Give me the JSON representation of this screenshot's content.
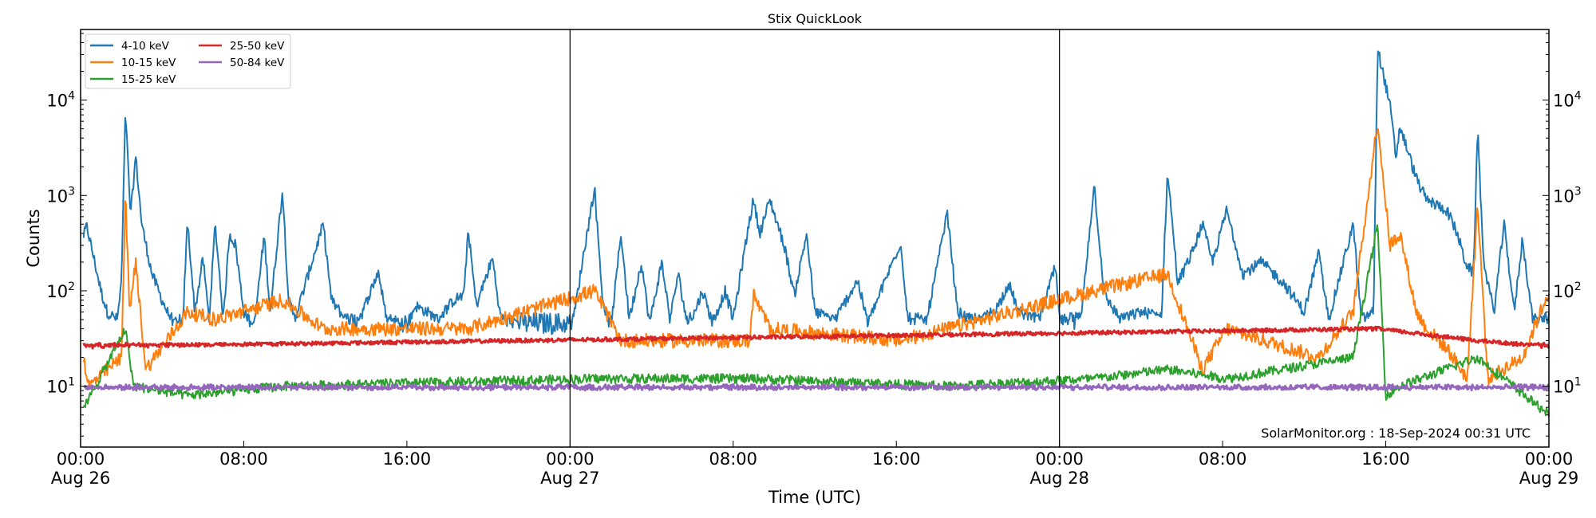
{
  "chart_data": {
    "type": "line",
    "title": "Stix QuickLook",
    "xlabel": "Time (UTC)",
    "ylabel": "Counts",
    "yscale": "log",
    "ylim": [
      2.3,
      55000
    ],
    "xlim_hours": [
      0,
      72
    ],
    "x_ticks": [
      {
        "hour": 0,
        "time": "00:00",
        "date": "Aug 26"
      },
      {
        "hour": 8,
        "time": "08:00",
        "date": ""
      },
      {
        "hour": 16,
        "time": "16:00",
        "date": ""
      },
      {
        "hour": 24,
        "time": "00:00",
        "date": "Aug 27"
      },
      {
        "hour": 32,
        "time": "08:00",
        "date": ""
      },
      {
        "hour": 40,
        "time": "16:00",
        "date": ""
      },
      {
        "hour": 48,
        "time": "00:00",
        "date": "Aug 28"
      },
      {
        "hour": 56,
        "time": "08:00",
        "date": ""
      },
      {
        "hour": 64,
        "time": "16:00",
        "date": ""
      },
      {
        "hour": 72,
        "time": "00:00",
        "date": "Aug 29"
      }
    ],
    "y_ticks": [
      {
        "value": 10,
        "base": "10",
        "exp": "1"
      },
      {
        "value": 100,
        "base": "10",
        "exp": "2"
      },
      {
        "value": 1000,
        "base": "10",
        "exp": "3"
      },
      {
        "value": 10000,
        "base": "10",
        "exp": "4"
      }
    ],
    "day_boundaries_hours": [
      24,
      48
    ],
    "legend_position": "top-left",
    "annotation": "SolarMonitor.org : 18-Sep-2024 00:31 UTC",
    "series": [
      {
        "name": "4-10 keV",
        "color": "#1f77b4",
        "baseline": 45,
        "noise": 0.12,
        "points": [
          [
            0,
            300
          ],
          [
            0.3,
            480
          ],
          [
            1,
            100
          ],
          [
            1.3,
            60
          ],
          [
            1.8,
            50
          ],
          [
            2.0,
            120
          ],
          [
            2.2,
            7800
          ],
          [
            2.45,
            600
          ],
          [
            2.7,
            2600
          ],
          [
            3,
            500
          ],
          [
            3.5,
            150
          ],
          [
            4,
            80
          ],
          [
            4.5,
            45
          ],
          [
            5,
            40
          ],
          [
            5.24,
            550
          ],
          [
            5.6,
            60
          ],
          [
            6.0,
            220
          ],
          [
            6.3,
            50
          ],
          [
            6.6,
            500
          ],
          [
            7,
            50
          ],
          [
            7.3,
            400
          ],
          [
            7.6,
            300
          ],
          [
            8,
            60
          ],
          [
            8.5,
            40
          ],
          [
            9.0,
            380
          ],
          [
            9.3,
            60
          ],
          [
            9.9,
            1150
          ],
          [
            10.2,
            80
          ],
          [
            10.5,
            50
          ],
          [
            11.9,
            500
          ],
          [
            12.3,
            80
          ],
          [
            13,
            50
          ],
          [
            13.5,
            40
          ],
          [
            14.6,
            160
          ],
          [
            15,
            50
          ],
          [
            16,
            40
          ],
          [
            16.4,
            70
          ],
          [
            17,
            60
          ],
          [
            17.5,
            50
          ],
          [
            18.3,
            80
          ],
          [
            18.8,
            90
          ],
          [
            19.0,
            450
          ],
          [
            19.4,
            70
          ],
          [
            20.2,
            220
          ],
          [
            20.6,
            50
          ],
          [
            22,
            40
          ],
          [
            23.9,
            35
          ],
          [
            24.1,
            40
          ],
          [
            24.6,
            200
          ],
          [
            25.2,
            1200
          ],
          [
            25.6,
            80
          ],
          [
            26,
            40
          ],
          [
            26.5,
            400
          ],
          [
            26.9,
            50
          ],
          [
            27.5,
            200
          ],
          [
            27.9,
            45
          ],
          [
            28.5,
            200
          ],
          [
            28.9,
            50
          ],
          [
            29.3,
            150
          ],
          [
            29.8,
            40
          ],
          [
            30.5,
            100
          ],
          [
            31,
            45
          ],
          [
            31.6,
            100
          ],
          [
            32,
            50
          ],
          [
            32.8,
            550
          ],
          [
            33,
            900
          ],
          [
            33.3,
            400
          ],
          [
            33.8,
            900
          ],
          [
            34.5,
            300
          ],
          [
            35,
            90
          ],
          [
            35.6,
            400
          ],
          [
            36,
            60
          ],
          [
            37,
            50
          ],
          [
            38.1,
            130
          ],
          [
            38.6,
            45
          ],
          [
            40.2,
            320
          ],
          [
            40.6,
            45
          ],
          [
            41.5,
            50
          ],
          [
            42.5,
            650
          ],
          [
            43,
            60
          ],
          [
            44,
            45
          ],
          [
            45,
            70
          ],
          [
            45.5,
            120
          ],
          [
            46,
            60
          ],
          [
            47,
            50
          ],
          [
            47.8,
            180
          ],
          [
            48,
            50
          ],
          [
            49,
            40
          ],
          [
            49.7,
            1300
          ],
          [
            50.2,
            90
          ],
          [
            51,
            50
          ],
          [
            52,
            60
          ],
          [
            53,
            55
          ],
          [
            53.3,
            1800
          ],
          [
            53.8,
            120
          ],
          [
            54.5,
            250
          ],
          [
            55,
            500
          ],
          [
            55.5,
            200
          ],
          [
            56.2,
            700
          ],
          [
            57,
            150
          ],
          [
            57.9,
            200
          ],
          [
            59,
            120
          ],
          [
            60,
            60
          ],
          [
            60.7,
            250
          ],
          [
            61.2,
            50
          ],
          [
            62.4,
            500
          ],
          [
            62.8,
            50
          ],
          [
            63.4,
            60
          ],
          [
            63.6,
            35000
          ],
          [
            64.2,
            9000
          ],
          [
            64.5,
            2500
          ],
          [
            64.7,
            5300
          ],
          [
            65.5,
            1500
          ],
          [
            66,
            900
          ],
          [
            67,
            700
          ],
          [
            67.5,
            400
          ],
          [
            67.9,
            200
          ],
          [
            68.3,
            150
          ],
          [
            68.5,
            5000
          ],
          [
            68.8,
            200
          ],
          [
            69.3,
            60
          ],
          [
            69.8,
            500
          ],
          [
            70.3,
            60
          ],
          [
            70.7,
            350
          ],
          [
            71.2,
            50
          ],
          [
            72,
            50
          ]
        ]
      },
      {
        "name": "10-15 keV",
        "color": "#ff7f0e",
        "baseline": 7.5,
        "noise": 0.15,
        "points": [
          [
            0,
            30
          ],
          [
            0.4,
            10
          ],
          [
            2.0,
            20
          ],
          [
            2.2,
            1000
          ],
          [
            2.4,
            60
          ],
          [
            2.7,
            200
          ],
          [
            3.2,
            15
          ],
          [
            5.24,
            60
          ],
          [
            6.6,
            50
          ],
          [
            9.9,
            80
          ],
          [
            11.9,
            40
          ],
          [
            19.0,
            40
          ],
          [
            25.2,
            100
          ],
          [
            26.5,
            30
          ],
          [
            32.8,
            30
          ],
          [
            33.0,
            90
          ],
          [
            33.8,
            40
          ],
          [
            40.2,
            30
          ],
          [
            42.5,
            40
          ],
          [
            49.7,
            100
          ],
          [
            53.3,
            150
          ],
          [
            55,
            15
          ],
          [
            56.2,
            40
          ],
          [
            60.7,
            20
          ],
          [
            62.4,
            60
          ],
          [
            63.6,
            6000
          ],
          [
            64.2,
            300
          ],
          [
            64.7,
            400
          ],
          [
            65.5,
            60
          ],
          [
            66,
            40
          ],
          [
            67,
            25
          ],
          [
            68,
            12
          ],
          [
            68.5,
            800
          ],
          [
            69,
            12
          ],
          [
            70.7,
            20
          ],
          [
            72,
            100
          ]
        ]
      },
      {
        "name": "15-25 keV",
        "color": "#2ca02c",
        "baseline": 5,
        "noise": 0.1,
        "points": [
          [
            0,
            5
          ],
          [
            2.2,
            40
          ],
          [
            2.6,
            10
          ],
          [
            5.24,
            8
          ],
          [
            9.9,
            10
          ],
          [
            25.2,
            12
          ],
          [
            33.0,
            12
          ],
          [
            42.5,
            10
          ],
          [
            49.7,
            12
          ],
          [
            53.3,
            15
          ],
          [
            56.2,
            12
          ],
          [
            62.4,
            20
          ],
          [
            63.6,
            500
          ],
          [
            64.0,
            8
          ],
          [
            64.7,
            10
          ],
          [
            68.5,
            20
          ],
          [
            72,
            5
          ]
        ]
      },
      {
        "name": "25-50 keV",
        "color": "#d62728",
        "baseline": 26,
        "noise": 0.04,
        "points": [
          [
            0,
            26
          ],
          [
            63.6,
            40
          ],
          [
            68.5,
            30
          ],
          [
            72,
            26
          ]
        ]
      },
      {
        "name": "50-84 keV",
        "color": "#9467bd",
        "baseline": 9.5,
        "noise": 0.04,
        "points": [
          [
            0,
            9.5
          ],
          [
            72,
            9.5
          ]
        ]
      }
    ]
  }
}
